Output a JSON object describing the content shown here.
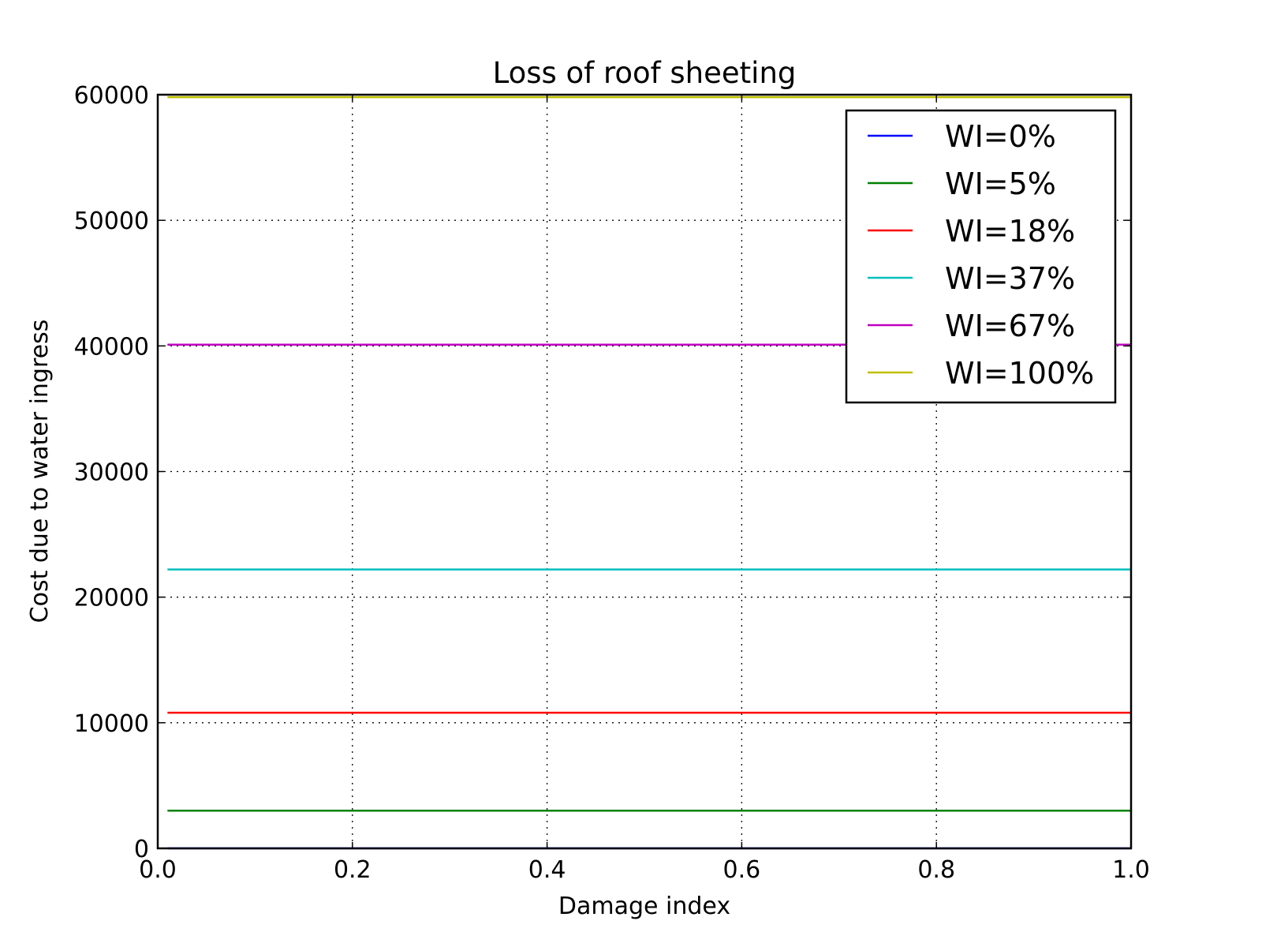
{
  "chart_data": {
    "type": "line",
    "title": "Loss of roof sheeting",
    "xlabel": "Damage index",
    "ylabel": "Cost due to water ingress",
    "xlim": [
      0.0,
      1.0
    ],
    "ylim": [
      0,
      60000
    ],
    "xticks": [
      "0.0",
      "0.2",
      "0.4",
      "0.6",
      "0.8",
      "1.0"
    ],
    "yticks": [
      "0",
      "10000",
      "20000",
      "30000",
      "40000",
      "50000",
      "60000"
    ],
    "grid": true,
    "legend_position": "top-right",
    "x": [
      0.01,
      1.0
    ],
    "series": [
      {
        "name": "WI=0%",
        "color": "#0000ff",
        "values": [
          0,
          0
        ]
      },
      {
        "name": "WI=5%",
        "color": "#008000",
        "values": [
          3000,
          3000
        ]
      },
      {
        "name": "WI=18%",
        "color": "#ff0000",
        "values": [
          10800,
          10800
        ]
      },
      {
        "name": "WI=37%",
        "color": "#00bfbf",
        "values": [
          22200,
          22200
        ]
      },
      {
        "name": "WI=67%",
        "color": "#bf00bf",
        "values": [
          40100,
          40100
        ]
      },
      {
        "name": "WI=100%",
        "color": "#bfbf00",
        "values": [
          59800,
          59800
        ]
      }
    ]
  }
}
